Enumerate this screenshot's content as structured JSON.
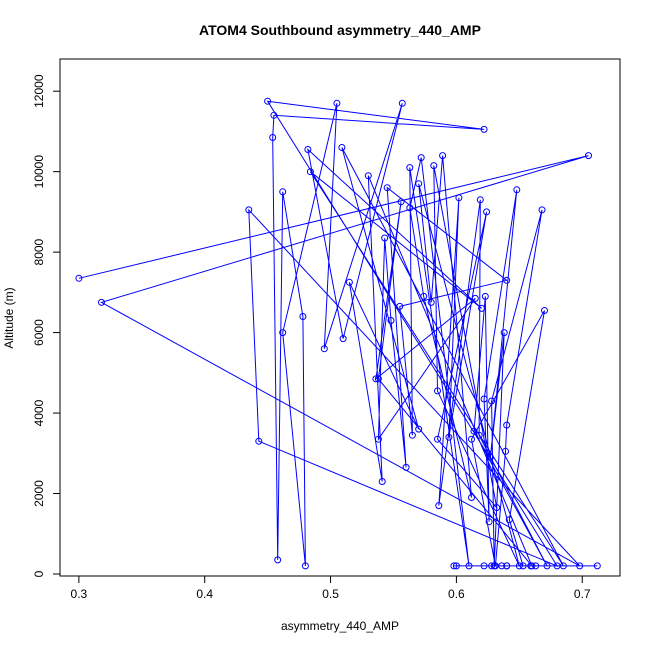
{
  "chart_data": {
    "type": "line",
    "title": "ATOM4 Southbound asymmetry_440_AMP",
    "xlabel": "asymmetry_440_AMP",
    "ylabel": "Altitude (m)",
    "xlim": [
      0.285,
      0.73
    ],
    "ylim": [
      -50,
      12800
    ],
    "x_ticks": [
      0.3,
      0.4,
      0.5,
      0.6,
      0.7
    ],
    "x_tick_labels": [
      "0.3",
      "0.4",
      "0.5",
      "0.6",
      "0.7"
    ],
    "y_ticks": [
      0,
      2000,
      4000,
      6000,
      8000,
      10000,
      12000
    ],
    "y_tick_labels": [
      "0",
      "2000",
      "4000",
      "6000",
      "8000",
      "10000",
      "12000"
    ],
    "grid": false,
    "series": [
      {
        "color": "#0000ff",
        "marker": "open-circle",
        "points": [
          [
            0.3,
            7350
          ],
          [
            0.705,
            10400
          ],
          [
            0.318,
            6750
          ],
          [
            0.698,
            200
          ],
          [
            0.435,
            9050
          ],
          [
            0.443,
            3300
          ],
          [
            0.68,
            200
          ],
          [
            0.45,
            11750
          ],
          [
            0.622,
            11050
          ],
          [
            0.455,
            11400
          ],
          [
            0.454,
            10850
          ],
          [
            0.458,
            350
          ],
          [
            0.462,
            9500
          ],
          [
            0.478,
            6400
          ],
          [
            0.48,
            200
          ],
          [
            0.462,
            6000
          ],
          [
            0.505,
            11700
          ],
          [
            0.495,
            5600
          ],
          [
            0.557,
            11700
          ],
          [
            0.51,
            5850
          ],
          [
            0.482,
            10550
          ],
          [
            0.62,
            6600
          ],
          [
            0.484,
            10000
          ],
          [
            0.685,
            200
          ],
          [
            0.509,
            10600
          ],
          [
            0.57,
            3600
          ],
          [
            0.515,
            7250
          ],
          [
            0.541,
            2300
          ],
          [
            0.53,
            9900
          ],
          [
            0.66,
            200
          ],
          [
            0.538,
            4850
          ],
          [
            0.556,
            9250
          ],
          [
            0.536,
            4850
          ],
          [
            0.615,
            6850
          ],
          [
            0.538,
            3350
          ],
          [
            0.543,
            8350
          ],
          [
            0.548,
            6300
          ],
          [
            0.56,
            2650
          ],
          [
            0.545,
            9600
          ],
          [
            0.64,
            7300
          ],
          [
            0.555,
            6650
          ],
          [
            0.565,
            3450
          ],
          [
            0.563,
            10100
          ],
          [
            0.61,
            200
          ],
          [
            0.572,
            10350
          ],
          [
            0.563,
            9100
          ],
          [
            0.574,
            6900
          ],
          [
            0.612,
            1900
          ],
          [
            0.589,
            10400
          ],
          [
            0.58,
            6750
          ],
          [
            0.57,
            9700
          ],
          [
            0.65,
            200
          ],
          [
            0.585,
            4550
          ],
          [
            0.582,
            10150
          ],
          [
            0.632,
            1650
          ],
          [
            0.585,
            3350
          ],
          [
            0.624,
            9000
          ],
          [
            0.594,
            3400
          ],
          [
            0.602,
            9350
          ],
          [
            0.586,
            1700
          ],
          [
            0.619,
            9300
          ],
          [
            0.618,
            3450
          ],
          [
            0.672,
            200
          ],
          [
            0.614,
            3550
          ],
          [
            0.623,
            6900
          ],
          [
            0.626,
            1300
          ],
          [
            0.622,
            4350
          ],
          [
            0.648,
            9550
          ],
          [
            0.627,
            2900
          ],
          [
            0.638,
            6000
          ],
          [
            0.63,
            200
          ],
          [
            0.628,
            4300
          ],
          [
            0.668,
            9050
          ],
          [
            0.64,
            3700
          ],
          [
            0.639,
            3050
          ],
          [
            0.631,
            200
          ],
          [
            0.612,
            3350
          ],
          [
            0.67,
            6550
          ],
          [
            0.642,
            1350
          ],
          [
            0.653,
            200
          ],
          [
            0.636,
            200
          ],
          [
            0.712,
            200
          ],
          [
            0.6,
            200
          ],
          [
            0.64,
            200
          ],
          [
            0.659,
            200
          ],
          [
            0.663,
            200
          ],
          [
            0.622,
            200
          ],
          [
            0.628,
            200
          ],
          [
            0.598,
            200
          ],
          [
            0.64,
            200
          ]
        ]
      }
    ]
  }
}
